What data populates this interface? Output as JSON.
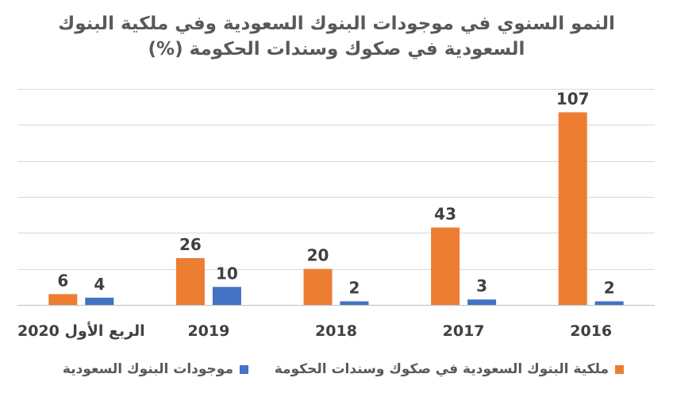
{
  "chart_data": {
    "type": "bar",
    "title": "النمو السنوي في موجودات البنوك السعودية وفي ملكية البنوك السعودية في صكوك وسندات الحكومة (%)",
    "title_lines": [
      "النمو السنوي في موجودات البنوك السعودية وفي ملكية البنوك",
      "السعودية في صكوك وسندات الحكومة (%)"
    ],
    "categories": [
      "الربع الأول 2020",
      "2019",
      "2018",
      "2017",
      "2016"
    ],
    "series": [
      {
        "name": "ملكية البنوك السعودية في صكوك وسندات الحكومة",
        "color": "#ED7D31",
        "values": [
          6,
          26,
          20,
          43,
          107
        ]
      },
      {
        "name": "موجودات البنوك السعودية",
        "color": "#4472C4",
        "values": [
          4,
          10,
          2,
          3,
          2
        ]
      }
    ],
    "ylim": [
      0,
      120
    ],
    "y_gridline_step": 20,
    "grid": true,
    "y_axis_labels_shown": false,
    "data_labels": true,
    "legend_position": "bottom"
  }
}
